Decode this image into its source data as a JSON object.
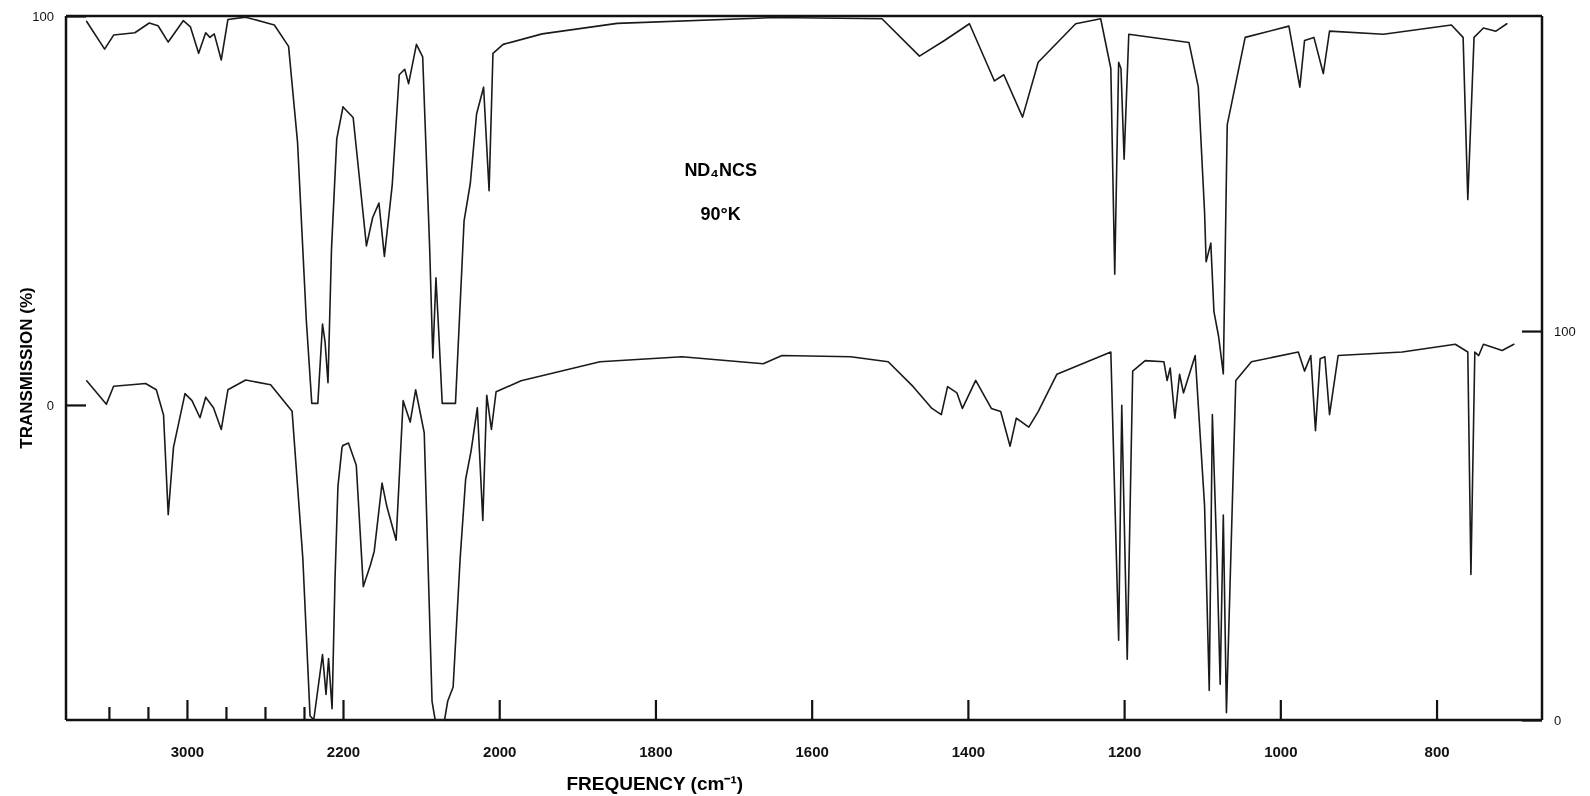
{
  "chart_data": [
    {
      "type": "line",
      "ylabel": "TRANSMISSION (%)",
      "xlim": [
        3620,
        2200
      ],
      "xticks": [
        {
          "value": 3400,
          "label": null
        },
        {
          "value": 3200,
          "label": null
        },
        3000,
        {
          "value": 2800,
          "label": null
        },
        {
          "value": 2600,
          "label": null
        },
        {
          "value": 2400,
          "label": null
        },
        2200
      ],
      "grid": false,
      "ylim": [
        -81,
        100
      ],
      "yticks": [
        0,
        100
      ],
      "y2lim": [
        0,
        181
      ],
      "marker": "none",
      "line_style": "solid",
      "series": [
        {
          "color": "#1a1a1a",
          "axis": "y",
          "x": [
            3514,
            3422,
            3376,
            3267,
            3193,
            3148,
            3096,
            3019,
            2982,
            2940,
            2904,
            2882,
            2860,
            2824,
            2790,
            2699,
            2552,
            2479,
            2433,
            2388,
            2360,
            2329,
            2305,
            2292,
            2277,
            2259,
            2232,
            2200
          ],
          "values": [
            98.6,
            91.5,
            95.1,
            95.7,
            98.2,
            97.5,
            93.3,
            98.8,
            97.2,
            90.4,
            95.7,
            94.5,
            95.4,
            88.7,
            99.1,
            99.7,
            97.7,
            92.2,
            67.5,
            21.7,
            0.4,
            0.4,
            20.8,
            16.2,
            5.7,
            40,
            68.4,
            76.6
          ]
        },
        {
          "color": "#1a1a1a",
          "axis": "y2",
          "x": [
            3514,
            3413,
            3376,
            3285,
            3212,
            3157,
            3120,
            3096,
            3069,
            3010,
            2974,
            2933,
            2904,
            2864,
            2824,
            2790,
            2699,
            2571,
            2461,
            2406,
            2369,
            2350,
            2305,
            2287,
            2274,
            2256,
            2241,
            2226,
            2205,
            2200
          ],
          "values": [
            87.2,
            81.2,
            85.8,
            86.2,
            86.5,
            84.9,
            78.4,
            52.8,
            70.1,
            83.9,
            82.1,
            77.7,
            83,
            80.3,
            74.7,
            84.9,
            87.4,
            86.2,
            79.4,
            41.6,
            1.1,
            0,
            16.8,
            6.6,
            15.8,
            2.9,
            36.1,
            60,
            70.1,
            70.6
          ]
        }
      ]
    },
    {
      "type": "line",
      "xlabel": "FREQUENCY (cm⁻¹)",
      "annotations": [
        "ND₄NCS",
        "90°K"
      ],
      "xlim": [
        2200,
        665
      ],
      "xticks": [
        2000,
        1800,
        1600,
        1400,
        1200,
        1000,
        800
      ],
      "grid": false,
      "ylim": [
        -81,
        100
      ],
      "y2lim": [
        0,
        181
      ],
      "y2ticks": [
        0,
        100
      ],
      "marker": "none",
      "line_style": "solid",
      "series": [
        {
          "color": "#1a1a1a",
          "axis": "y",
          "x": [
            2200,
            2187,
            2170,
            2162,
            2154,
            2147,
            2137,
            2128,
            2121,
            2116,
            2106,
            2098,
            2089,
            2085,
            2081,
            2077,
            2073,
            2056,
            2045,
            2037,
            2029,
            2020,
            2013,
            2008,
            1995,
            1945,
            1849,
            1646,
            1510,
            1462,
            1430,
            1398,
            1366,
            1354,
            1330,
            1310,
            1262,
            1230,
            1217,
            1212,
            1207,
            1204,
            1200,
            1194,
            1117,
            1105,
            1097,
            1095,
            1089,
            1085,
            1079,
            1073,
            1068,
            1045,
            989,
            975,
            969,
            957,
            945,
            937,
            868,
            781,
            766,
            760,
            752,
            740,
            724,
            710
          ],
          "values": [
            76.6,
            73.9,
            40.9,
            48.2,
            51.9,
            38.2,
            56.5,
            84.9,
            86.3,
            82.6,
            92.7,
            89.5,
            40,
            12.1,
            32.7,
            17.1,
            0.4,
            0.4,
            47.3,
            57,
            74.8,
            81.7,
            55.1,
            90.4,
            92.7,
            95.4,
            98.1,
            99.6,
            99.3,
            89.7,
            93.7,
            98,
            83.3,
            84.9,
            74,
            88.1,
            98,
            99.3,
            86.5,
            33.6,
            88.1,
            86.5,
            63.2,
            95.3,
            93.2,
            81.7,
            49.6,
            36.8,
            41.6,
            24,
            17.6,
            8,
            72,
            94.5,
            97.4,
            81.7,
            93.7,
            94.5,
            85.2,
            96.1,
            95.3,
            97.7,
            94.5,
            52.8,
            94.5,
            96.9,
            96.1,
            98
          ]
        },
        {
          "color": "#1a1a1a",
          "axis": "y2",
          "x": [
            2200,
            2193,
            2183,
            2174,
            2165,
            2160,
            2150,
            2144,
            2132,
            2123,
            2114,
            2107,
            2096,
            2086,
            2082,
            2070,
            2066,
            2059,
            2050,
            2043,
            2036,
            2028,
            2021,
            2016,
            2010,
            2004,
            1972,
            1871,
            1766,
            1662,
            1638,
            1550,
            1502,
            1470,
            1446,
            1434,
            1426,
            1414,
            1407,
            1390,
            1370,
            1358,
            1346,
            1338,
            1322,
            1310,
            1286,
            1217,
            1207,
            1203,
            1196,
            1189,
            1173,
            1149,
            1145,
            1141,
            1135,
            1129,
            1124,
            1109,
            1097,
            1091,
            1087,
            1081,
            1077,
            1073,
            1069,
            1057,
            1037,
            977,
            969,
            961,
            955,
            949,
            943,
            937,
            926,
            844,
            776,
            760,
            756,
            751,
            746,
            740,
            716,
            701
          ],
          "values": [
            70.6,
            71.2,
            65.5,
            34.3,
            39.8,
            43.4,
            60.9,
            55,
            46.2,
            82.1,
            76.6,
            84.9,
            73.8,
            4.8,
            0,
            0,
            4.8,
            8.5,
            41.6,
            61.9,
            69.2,
            80.3,
            51.3,
            83.5,
            74.7,
            84.4,
            87.2,
            92.1,
            93.4,
            91.6,
            93.7,
            93.4,
            92.1,
            85.7,
            80.1,
            78.5,
            85.7,
            84.1,
            80.1,
            87.3,
            80.1,
            79.3,
            70.4,
            77.6,
            75.3,
            79.3,
            88.9,
            94.6,
            20.5,
            80.9,
            15.6,
            89.7,
            92.4,
            92.1,
            87.3,
            90.5,
            77.6,
            88.9,
            84.1,
            93.7,
            55.1,
            7.6,
            78.5,
            40.6,
            9.2,
            52.7,
            1.9,
            87.3,
            92.1,
            94.6,
            89.7,
            93.7,
            74.4,
            92.9,
            93.4,
            78.5,
            93.7,
            94.6,
            96.6,
            94.6,
            37.4,
            94.6,
            93.7,
            96.6,
            95,
            96.6
          ]
        }
      ]
    }
  ]
}
